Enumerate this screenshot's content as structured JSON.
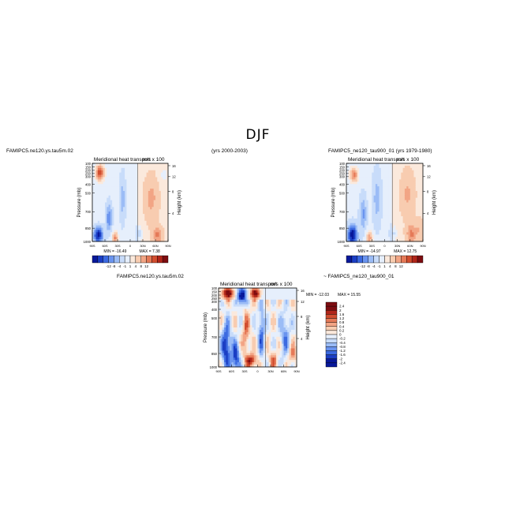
{
  "page": {
    "title": "DJF"
  },
  "headers": {
    "top_left_case": "FAMIPC5.ne120.ys.tau5m.02",
    "top_left_years": "(yrs 2000-2003)",
    "top_right_case": "FAMIPC5_ne120_tau900_01",
    "top_right_years": "(yrs 1979-1980)",
    "bottom_case_a": "FAMIPC5.ne120.ys.tau5m.02",
    "bottom_case_b": "~ FAMIPC5_ne120_tau900_01"
  },
  "colors": {
    "diverging_palette": [
      "#08189a",
      "#1b3ec4",
      "#3c6ae0",
      "#6a94ef",
      "#9bbcf6",
      "#c8dcfa",
      "#e6effc",
      "#fbe9dc",
      "#f8ccb0",
      "#f2a585",
      "#e57a58",
      "#d14d2f",
      "#b0261a",
      "#7d0c10"
    ]
  },
  "chart_data": [
    {
      "id": "panel-top-left",
      "type": "heatmap",
      "title": "Meridional heat transport",
      "units": "m/s x 100",
      "ylabel": "Pressure (mb)",
      "ylabel_right": "Height (km)",
      "x_ticklabels": [
        "90S",
        "60S",
        "30S",
        "0",
        "30N",
        "60N",
        "90N"
      ],
      "y_ticklabels": [
        "100",
        "150",
        "200",
        "250",
        "300",
        "400",
        "500",
        "700",
        "850",
        "1000"
      ],
      "y2_ticklabels": [
        "16",
        "12",
        "8",
        "4"
      ],
      "min_label": "MIN = -16.49",
      "max_label": "MAX = 7.38",
      "colorbar": {
        "labels": [
          "-12",
          "-8",
          "-4",
          "-1",
          "1",
          "4",
          "8",
          "12"
        ]
      }
    },
    {
      "id": "panel-top-right",
      "type": "heatmap",
      "title": "Meridional heat transport",
      "units": "m/s x 100",
      "ylabel": "Pressure (mb)",
      "ylabel_right": "Height (km)",
      "x_ticklabels": [
        "90S",
        "60S",
        "30S",
        "0",
        "30N",
        "60N",
        "90N"
      ],
      "y_ticklabels": [
        "100",
        "150",
        "200",
        "250",
        "300",
        "400",
        "500",
        "700",
        "850",
        "1000"
      ],
      "y2_ticklabels": [
        "16",
        "12",
        "8",
        "4"
      ],
      "min_label": "MIN = -14.97",
      "max_label": "MAX = 12.75",
      "colorbar": {
        "labels": [
          "-12",
          "-8",
          "-4",
          "-1",
          "1",
          "4",
          "8",
          "12"
        ]
      }
    },
    {
      "id": "panel-difference",
      "type": "heatmap",
      "title": "Meridional heat transport",
      "units": "m/s x 100",
      "ylabel": "Pressure (mb)",
      "ylabel_right": "Height (km)",
      "x_ticklabels": [
        "90S",
        "60S",
        "30S",
        "0",
        "30N",
        "60N",
        "90N"
      ],
      "y_ticklabels": [
        "100",
        "150",
        "200",
        "250",
        "300",
        "400",
        "500",
        "700",
        "850",
        "1000"
      ],
      "y2_ticklabels": [
        "16",
        "12",
        "8",
        "4"
      ],
      "min_label": "MIN = -12.03",
      "max_label": "MAX = 15.55",
      "colorbar": {
        "labels": [
          "2.4",
          "2",
          "1.6",
          "1.2",
          "0.8",
          "0.4",
          "0.2",
          "0",
          "-0.2",
          "-0.4",
          "-0.8",
          "-1.2",
          "-1.6",
          "-2",
          "-2.4"
        ]
      }
    }
  ]
}
